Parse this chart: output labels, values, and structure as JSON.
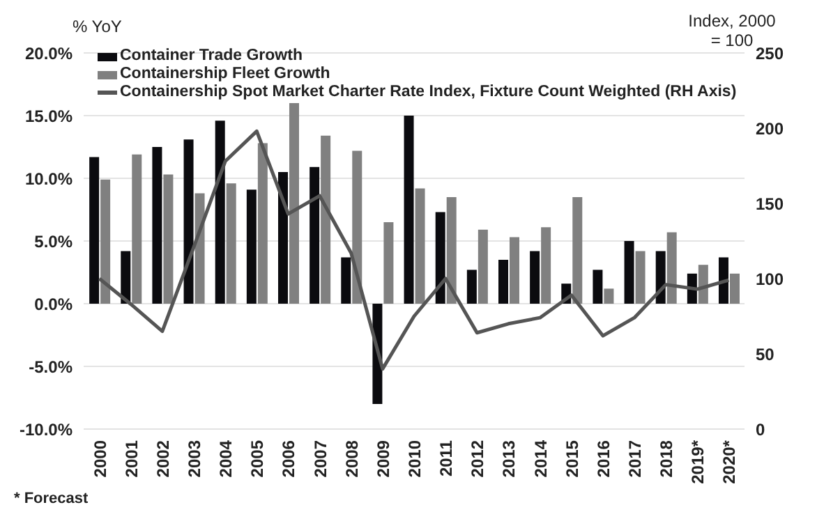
{
  "chart_data": {
    "type": "bar",
    "ylabel": "% YoY",
    "y2label": "Index, 2000 = 100",
    "annotations": [
      "* Forecast"
    ],
    "categories": [
      "2000",
      "2001",
      "2002",
      "2003",
      "2004",
      "2005",
      "2006",
      "2007",
      "2008",
      "2009",
      "2010",
      "2011",
      "2012",
      "2013",
      "2014",
      "2015",
      "2016",
      "2017",
      "2018",
      "2019*",
      "2020*"
    ],
    "series": [
      {
        "name": "Container Trade Growth",
        "color": "#0b0b0f",
        "values": [
          11.7,
          4.2,
          12.5,
          13.1,
          14.6,
          9.1,
          10.5,
          10.9,
          3.7,
          -8.0,
          15.0,
          7.3,
          2.7,
          3.5,
          4.2,
          1.6,
          2.7,
          5.0,
          4.2,
          2.4,
          3.7
        ]
      },
      {
        "name": "Containership Fleet Growth",
        "color": "#808080",
        "values": [
          9.9,
          11.9,
          10.3,
          8.8,
          9.6,
          12.8,
          16.0,
          13.4,
          12.2,
          6.5,
          9.2,
          8.5,
          5.9,
          5.3,
          6.1,
          8.5,
          1.2,
          4.2,
          5.7,
          3.1,
          2.4
        ]
      },
      {
        "name": "Containership Spot Market Charter Rate Index, Fixture Count Weighted (RH Axis)",
        "type": "line",
        "axis": "y2",
        "color": "#555555",
        "values": [
          100,
          83,
          65,
          121,
          178,
          198,
          143,
          155,
          117,
          40,
          75,
          100,
          64,
          70,
          74,
          89,
          62,
          74,
          96,
          93,
          99
        ]
      }
    ],
    "ylim": [
      -10,
      20
    ],
    "yticks": [
      {
        "value": -10,
        "label": "-10.0%"
      },
      {
        "value": -5,
        "label": "-5.0%"
      },
      {
        "value": 0,
        "label": "0.0%"
      },
      {
        "value": 5,
        "label": "5.0%"
      },
      {
        "value": 10,
        "label": "10.0%"
      },
      {
        "value": 15,
        "label": "15.0%"
      },
      {
        "value": 20,
        "label": "20.0%"
      }
    ],
    "y2lim": [
      0,
      250
    ],
    "y2ticks": [
      0,
      50,
      100,
      150,
      200,
      250
    ],
    "grid": "y",
    "legend": "top left",
    "marker": "none",
    "line_style": "solid"
  }
}
